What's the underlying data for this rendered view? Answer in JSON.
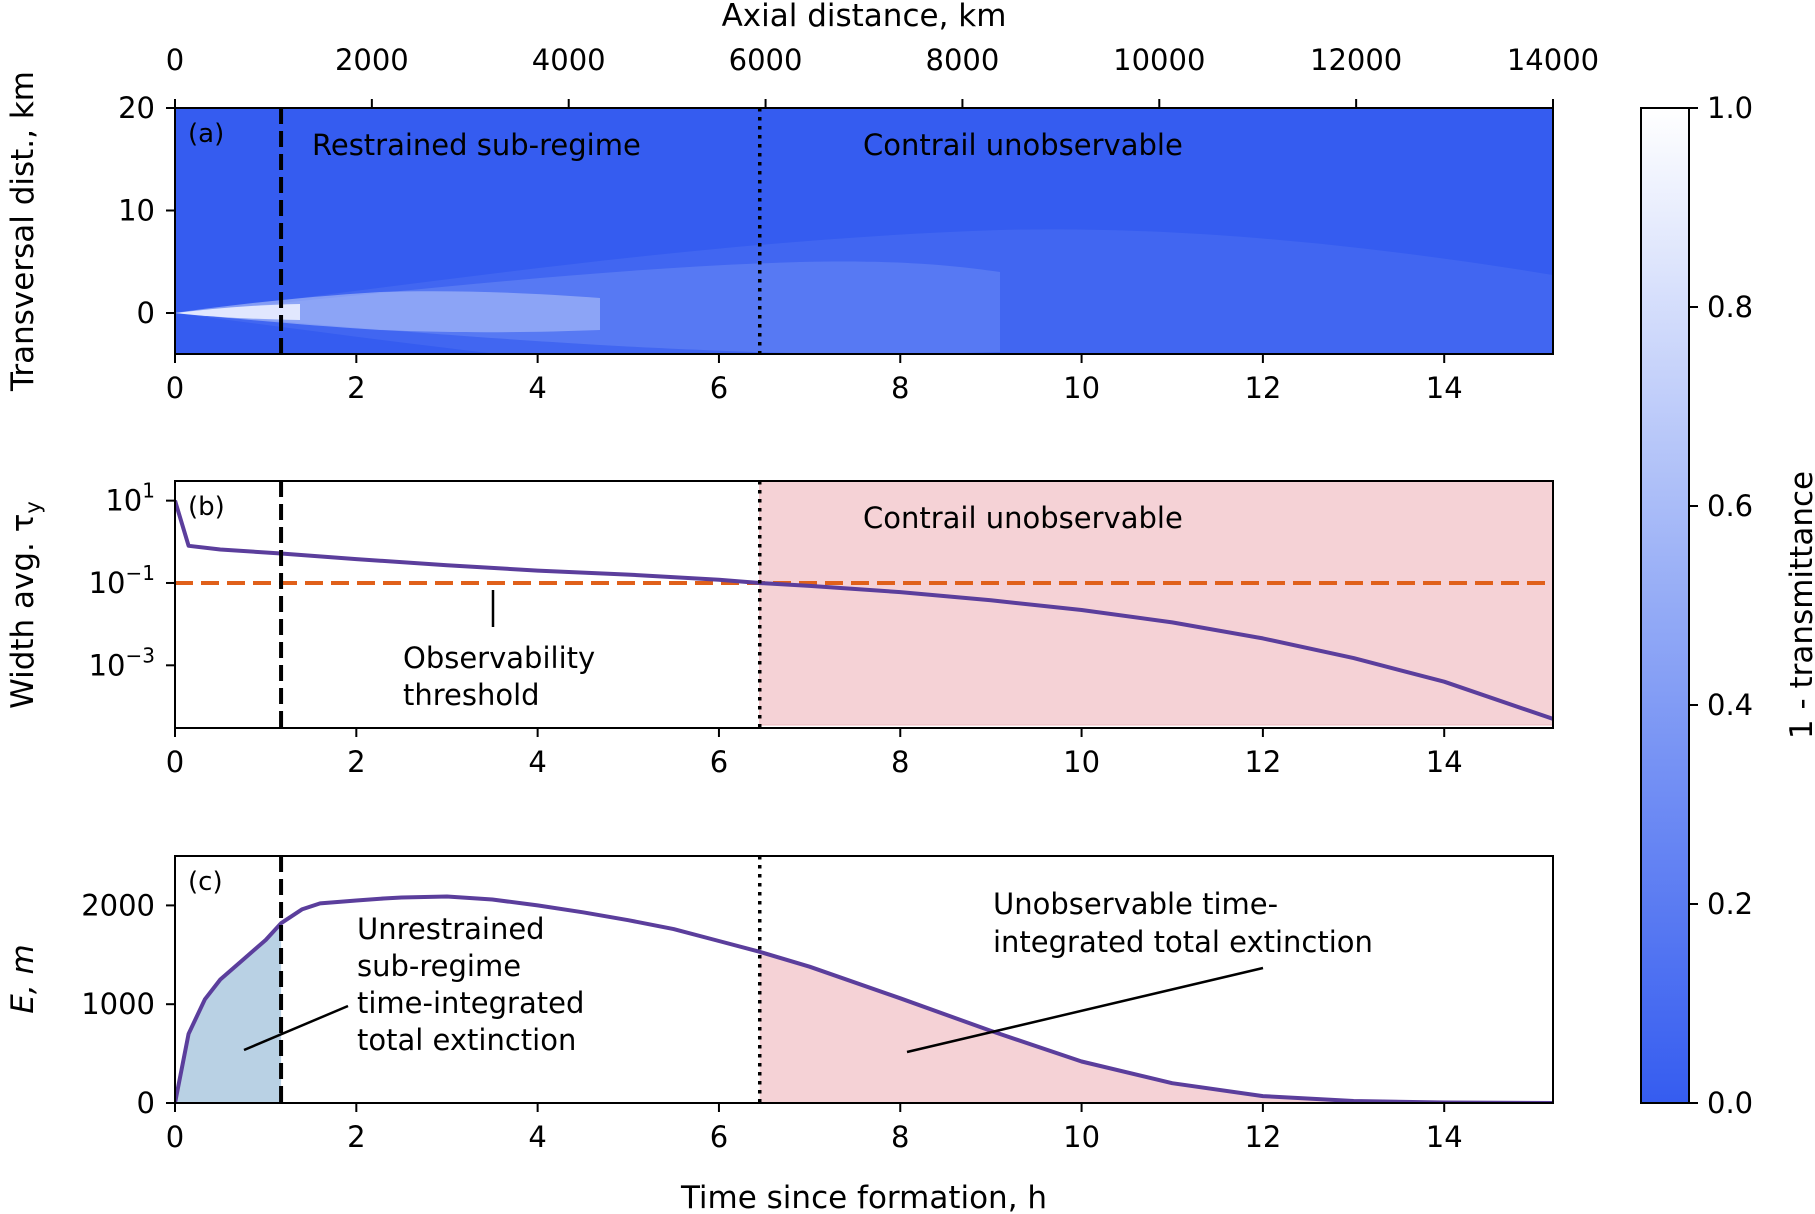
{
  "colors": {
    "line": "#5b3e9c",
    "threshold": "#e0601a",
    "unobservable_fill": "#f5d2d6",
    "unrestrained_fill": "#b9d1e4",
    "cmap_low": "#355cf0",
    "cmap_high": "#ffffff"
  },
  "chart_data": [
    {
      "id": "a",
      "type": "heatmap",
      "panel_label": "(a)",
      "xlabel_top": "Axial distance, km",
      "xticks_top": [
        0,
        2000,
        4000,
        6000,
        8000,
        10000,
        12000,
        14000
      ],
      "xlim_top": [
        0,
        14000
      ],
      "xlabel": "",
      "xticks": [
        0,
        2,
        4,
        6,
        8,
        10,
        12,
        14
      ],
      "xlim": [
        0,
        15.2
      ],
      "ylabel": "Transversal dist., km",
      "yticks": [
        0,
        10,
        20
      ],
      "ylim": [
        -4,
        20
      ],
      "vlines": [
        {
          "x": 1.17,
          "style": "dashed"
        },
        {
          "x": 6.45,
          "style": "dotted"
        }
      ],
      "annotations": [
        "Restrained sub-regime",
        "Contrail unobservable"
      ],
      "colorbar": {
        "label": "1 - transmittance",
        "ticks": [
          "0.0",
          "0.2",
          "0.4",
          "0.6",
          "0.8",
          "1.0"
        ],
        "range": [
          0,
          1
        ]
      }
    },
    {
      "id": "b",
      "type": "line",
      "panel_label": "(b)",
      "xlabel": "",
      "xticks": [
        0,
        2,
        4,
        6,
        8,
        10,
        12,
        14
      ],
      "xlim": [
        0,
        15.2
      ],
      "ylabel": "Width avg. τ",
      "ylabel_sub": "y",
      "yscale": "log",
      "ylim": [
        3e-05,
        30
      ],
      "yticks": [
        {
          "value": 10,
          "base": "10",
          "exp": "1"
        },
        {
          "value": 0.1,
          "base": "10",
          "exp": "−1"
        },
        {
          "value": 0.001,
          "base": "10",
          "exp": "−3"
        }
      ],
      "series": [
        {
          "x": [
            0,
            0.15,
            0.5,
            1.0,
            1.17,
            2,
            3,
            4,
            5,
            6,
            6.45,
            7,
            8,
            9,
            10,
            11,
            12,
            13,
            14,
            15.2
          ],
          "y": [
            10,
            0.8,
            0.65,
            0.55,
            0.52,
            0.38,
            0.27,
            0.2,
            0.16,
            0.12,
            0.1,
            0.085,
            0.06,
            0.038,
            0.022,
            0.011,
            0.0045,
            0.0015,
            0.0004,
            5e-05
          ]
        }
      ],
      "hline": {
        "y": 0.1,
        "style": "dashed"
      },
      "vlines": [
        {
          "x": 1.17,
          "style": "dashed"
        },
        {
          "x": 6.45,
          "style": "dotted"
        }
      ],
      "shaded": {
        "x_from": 6.45
      },
      "annotations": [
        "Contrail unobservable"
      ],
      "threshold_label": [
        "Observability",
        "threshold"
      ]
    },
    {
      "id": "c",
      "type": "area",
      "panel_label": "(c)",
      "xlabel": "Time since formation, h",
      "xticks": [
        0,
        2,
        4,
        6,
        8,
        10,
        12,
        14
      ],
      "xlim": [
        0,
        15.2
      ],
      "ylabel": "E, m",
      "yticks": [
        0,
        1000,
        2000
      ],
      "ylim": [
        0,
        2500
      ],
      "series": [
        {
          "x": [
            0,
            0.15,
            0.33,
            0.5,
            0.75,
            1.0,
            1.17,
            1.4,
            1.6,
            2.0,
            2.3,
            2.5,
            3.0,
            3.5,
            4.0,
            4.5,
            5.0,
            5.5,
            6.0,
            6.45,
            7.0,
            8.0,
            9.0,
            10.0,
            11.0,
            12.0,
            13.0,
            14.0,
            15.2
          ],
          "y": [
            0,
            700,
            1050,
            1250,
            1450,
            1650,
            1820,
            1960,
            2020,
            2050,
            2070,
            2080,
            2090,
            2060,
            2000,
            1930,
            1850,
            1760,
            1640,
            1530,
            1380,
            1060,
            730,
            420,
            200,
            70,
            20,
            5,
            0
          ]
        }
      ],
      "vlines": [
        {
          "x": 1.17,
          "style": "dashed"
        },
        {
          "x": 6.45,
          "style": "dotted"
        }
      ],
      "shaded_left": {
        "x_to": 1.17
      },
      "shaded_right": {
        "x_from": 6.45
      },
      "annotations": {
        "left": [
          "Unrestrained",
          "sub-regime",
          "time-integrated",
          "total extinction"
        ],
        "right": [
          "Unobservable time-",
          "integrated total extinction"
        ]
      }
    }
  ]
}
